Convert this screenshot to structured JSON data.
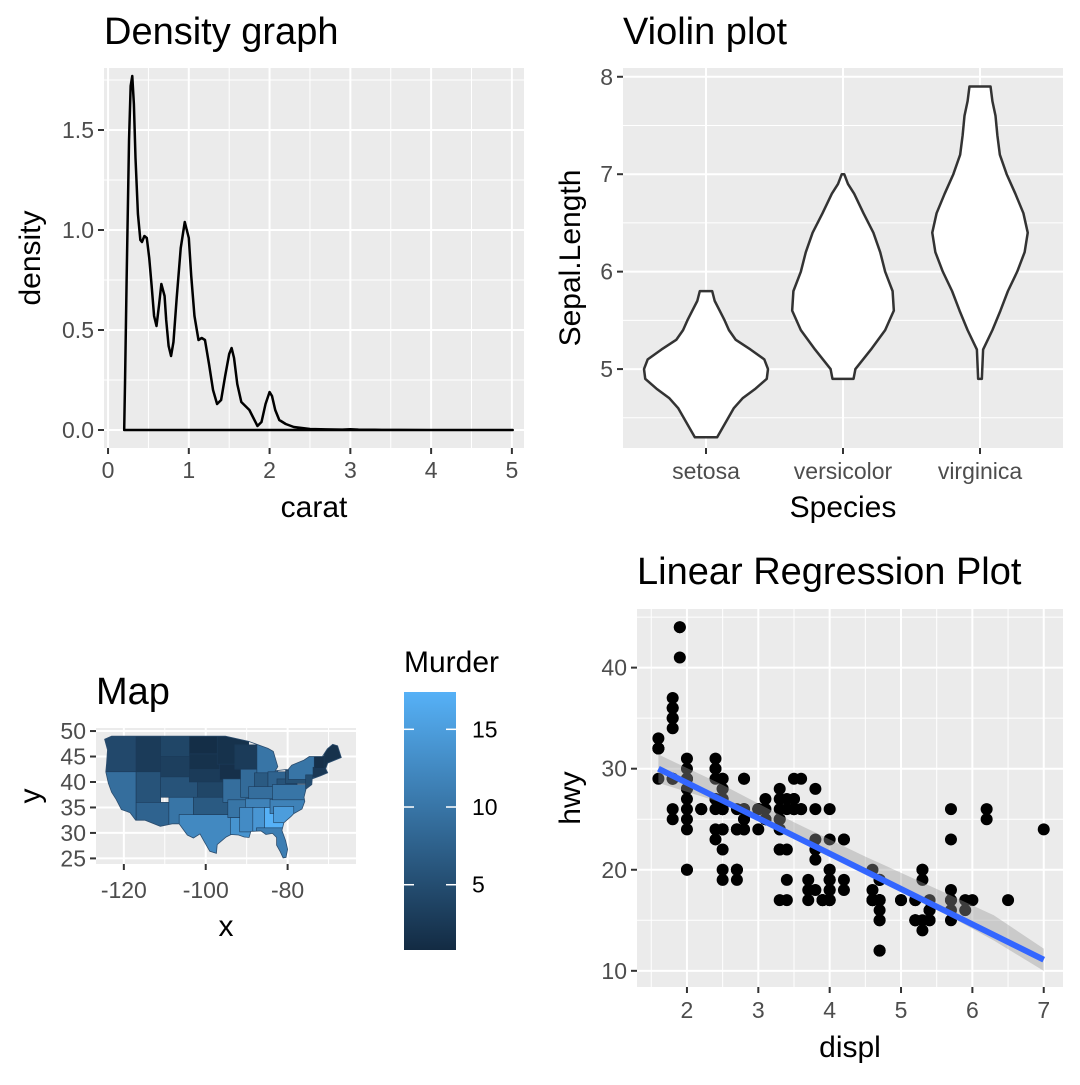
{
  "chart_data": [
    {
      "type": "area",
      "subtype": "density",
      "title": "Density graph",
      "xlabel": "carat",
      "ylabel": "density",
      "xlim": [
        0,
        5
      ],
      "ylim": [
        0,
        1.8
      ],
      "xticks": [
        "0",
        "1",
        "2",
        "3",
        "4",
        "5"
      ],
      "yticks": [
        "0.0",
        "0.5",
        "1.0",
        "1.5"
      ],
      "grid": true,
      "x": [
        0.2,
        0.21,
        0.23,
        0.26,
        0.28,
        0.3,
        0.32,
        0.34,
        0.37,
        0.4,
        0.42,
        0.45,
        0.48,
        0.51,
        0.54,
        0.57,
        0.6,
        0.63,
        0.66,
        0.7,
        0.72,
        0.75,
        0.78,
        0.81,
        0.85,
        0.9,
        0.95,
        1.0,
        1.03,
        1.07,
        1.12,
        1.16,
        1.2,
        1.25,
        1.3,
        1.35,
        1.4,
        1.45,
        1.5,
        1.53,
        1.56,
        1.6,
        1.65,
        1.7,
        1.75,
        1.8,
        1.85,
        1.9,
        1.95,
        2.0,
        2.03,
        2.07,
        2.12,
        2.2,
        2.3,
        2.4,
        2.5,
        2.7,
        2.9,
        3.0,
        3.1,
        3.3,
        3.6,
        4.0,
        4.5,
        5.01
      ],
      "y": [
        0.0,
        0.23,
        0.75,
        1.45,
        1.72,
        1.77,
        1.63,
        1.36,
        1.08,
        0.95,
        0.94,
        0.97,
        0.96,
        0.86,
        0.72,
        0.57,
        0.52,
        0.62,
        0.73,
        0.67,
        0.55,
        0.42,
        0.37,
        0.44,
        0.66,
        0.91,
        1.04,
        0.96,
        0.77,
        0.57,
        0.45,
        0.46,
        0.45,
        0.33,
        0.2,
        0.13,
        0.15,
        0.27,
        0.38,
        0.41,
        0.36,
        0.23,
        0.14,
        0.12,
        0.1,
        0.06,
        0.02,
        0.04,
        0.13,
        0.19,
        0.17,
        0.1,
        0.05,
        0.03,
        0.015,
        0.01,
        0.005,
        0.003,
        0.002,
        0.004,
        0.002,
        0.001,
        0.0005,
        0.0003,
        0.0002,
        0.0001
      ]
    },
    {
      "type": "violin",
      "title": "Violin plot",
      "xlabel": "Species",
      "ylabel": "Sepal.Length",
      "categories": [
        "setosa",
        "versicolor",
        "virginica"
      ],
      "ylim": [
        4.2,
        8.0
      ],
      "yticks": [
        "5",
        "6",
        "7",
        "8"
      ],
      "grid": true,
      "violins": [
        {
          "name": "setosa",
          "y": [
            4.3,
            4.4,
            4.5,
            4.6,
            4.7,
            4.8,
            4.9,
            5.0,
            5.1,
            5.2,
            5.3,
            5.4,
            5.5,
            5.6,
            5.7,
            5.8
          ],
          "halfwidth": [
            0.18,
            0.27,
            0.36,
            0.45,
            0.59,
            0.8,
            0.98,
            1.0,
            0.94,
            0.72,
            0.48,
            0.37,
            0.3,
            0.22,
            0.14,
            0.1
          ]
        },
        {
          "name": "versicolor",
          "y": [
            4.9,
            5.0,
            5.2,
            5.4,
            5.6,
            5.8,
            6.0,
            6.2,
            6.4,
            6.6,
            6.8,
            6.9,
            7.0
          ],
          "halfwidth": [
            0.17,
            0.2,
            0.45,
            0.68,
            0.82,
            0.8,
            0.68,
            0.6,
            0.49,
            0.33,
            0.18,
            0.08,
            0.02
          ]
        },
        {
          "name": "virginica",
          "y": [
            4.9,
            5.2,
            5.4,
            5.6,
            5.8,
            6.0,
            6.2,
            6.4,
            6.6,
            6.8,
            7.0,
            7.2,
            7.4,
            7.6,
            7.75,
            7.9
          ],
          "halfwidth": [
            0.03,
            0.05,
            0.2,
            0.33,
            0.45,
            0.6,
            0.72,
            0.77,
            0.7,
            0.57,
            0.43,
            0.32,
            0.28,
            0.25,
            0.2,
            0.17
          ]
        }
      ]
    },
    {
      "type": "map",
      "subtype": "choropleth",
      "title": "Map",
      "xlabel": "x",
      "ylabel": "y",
      "xlim": [
        -126,
        -64
      ],
      "ylim": [
        24,
        51
      ],
      "xticks": [
        -120,
        -100,
        -80
      ],
      "yticks": [
        25,
        30,
        35,
        40,
        45,
        50
      ],
      "fill_variable": "Murder",
      "legend": {
        "title": "Murder",
        "range": [
          0.8,
          17.4
        ],
        "ticks": [
          5,
          10,
          15
        ],
        "low_color": "#132B43",
        "high_color": "#56B1F7",
        "placement": "right"
      },
      "outline": [
        [
          -124.7,
          48.4
        ],
        [
          -123.0,
          49.0
        ],
        [
          -95.2,
          49.0
        ],
        [
          -89.6,
          48.0
        ],
        [
          -84.8,
          46.6
        ],
        [
          -83.5,
          46.0
        ],
        [
          -82.4,
          43.0
        ],
        [
          -83.0,
          42.2
        ],
        [
          -79.8,
          42.5
        ],
        [
          -79.0,
          43.3
        ],
        [
          -76.0,
          44.3
        ],
        [
          -74.7,
          45.0
        ],
        [
          -71.5,
          45.0
        ],
        [
          -70.3,
          46.5
        ],
        [
          -69.0,
          47.4
        ],
        [
          -67.8,
          47.1
        ],
        [
          -66.9,
          44.8
        ],
        [
          -70.2,
          43.7
        ],
        [
          -70.7,
          42.6
        ],
        [
          -70.2,
          41.8
        ],
        [
          -72.0,
          41.2
        ],
        [
          -74.0,
          40.6
        ],
        [
          -74.1,
          39.5
        ],
        [
          -75.5,
          38.6
        ],
        [
          -76.0,
          37.0
        ],
        [
          -75.8,
          36.2
        ],
        [
          -76.5,
          34.7
        ],
        [
          -78.5,
          33.8
        ],
        [
          -79.2,
          33.2
        ],
        [
          -80.9,
          32.0
        ],
        [
          -81.4,
          30.5
        ],
        [
          -80.5,
          28.5
        ],
        [
          -80.0,
          26.8
        ],
        [
          -80.4,
          25.2
        ],
        [
          -81.1,
          25.1
        ],
        [
          -81.8,
          26.3
        ],
        [
          -82.7,
          27.6
        ],
        [
          -82.7,
          29.1
        ],
        [
          -83.7,
          29.9
        ],
        [
          -85.3,
          29.7
        ],
        [
          -86.5,
          30.4
        ],
        [
          -89.0,
          30.3
        ],
        [
          -89.4,
          29.1
        ],
        [
          -90.6,
          29.2
        ],
        [
          -92.0,
          29.6
        ],
        [
          -93.8,
          29.7
        ],
        [
          -95.0,
          29.2
        ],
        [
          -97.2,
          27.7
        ],
        [
          -97.4,
          26.0
        ],
        [
          -99.0,
          26.4
        ],
        [
          -100.3,
          28.2
        ],
        [
          -101.4,
          29.8
        ],
        [
          -103.0,
          29.0
        ],
        [
          -104.5,
          29.6
        ],
        [
          -106.5,
          31.8
        ],
        [
          -108.2,
          31.8
        ],
        [
          -111.1,
          31.3
        ],
        [
          -114.8,
          32.5
        ],
        [
          -117.1,
          32.5
        ],
        [
          -118.5,
          34.0
        ],
        [
          -120.6,
          34.6
        ],
        [
          -121.9,
          36.6
        ],
        [
          -123.0,
          38.0
        ],
        [
          -123.8,
          39.8
        ],
        [
          -124.4,
          42.0
        ],
        [
          -124.2,
          43.7
        ],
        [
          -124.0,
          46.3
        ],
        [
          -124.7,
          48.4
        ]
      ]
    },
    {
      "type": "scatter",
      "title": "Linear Regression Plot",
      "xlabel": "displ",
      "ylabel": "hwy",
      "xlim": [
        1.3,
        7.3
      ],
      "ylim": [
        9,
        46
      ],
      "xticks": [
        2,
        3,
        4,
        5,
        6,
        7
      ],
      "yticks": [
        10,
        20,
        30,
        40
      ],
      "grid": true,
      "points": [
        [
          1.8,
          29
        ],
        [
          1.8,
          29
        ],
        [
          2.0,
          31
        ],
        [
          2.0,
          30
        ],
        [
          2.8,
          26
        ],
        [
          2.8,
          26
        ],
        [
          3.1,
          27
        ],
        [
          1.8,
          26
        ],
        [
          1.8,
          25
        ],
        [
          2.0,
          28
        ],
        [
          2.0,
          27
        ],
        [
          2.8,
          25
        ],
        [
          2.8,
          25
        ],
        [
          3.1,
          25
        ],
        [
          3.1,
          25
        ],
        [
          2.8,
          24
        ],
        [
          3.1,
          25
        ],
        [
          4.2,
          23
        ],
        [
          5.3,
          20
        ],
        [
          5.3,
          15
        ],
        [
          5.3,
          20
        ],
        [
          5.7,
          17
        ],
        [
          6.0,
          17
        ],
        [
          5.7,
          26
        ],
        [
          5.7,
          23
        ],
        [
          6.2,
          26
        ],
        [
          6.2,
          25
        ],
        [
          7.0,
          24
        ],
        [
          5.3,
          19
        ],
        [
          5.3,
          14
        ],
        [
          5.7,
          15
        ],
        [
          6.5,
          17
        ],
        [
          2.4,
          27
        ],
        [
          2.4,
          30
        ],
        [
          3.1,
          26
        ],
        [
          3.5,
          29
        ],
        [
          3.6,
          26
        ],
        [
          2.4,
          24
        ],
        [
          3.0,
          24
        ],
        [
          3.3,
          22
        ],
        [
          3.3,
          22
        ],
        [
          3.3,
          24
        ],
        [
          3.3,
          24
        ],
        [
          3.3,
          17
        ],
        [
          3.8,
          22
        ],
        [
          3.8,
          21
        ],
        [
          3.8,
          23
        ],
        [
          4.0,
          23
        ],
        [
          3.7,
          19
        ],
        [
          3.7,
          18
        ],
        [
          3.9,
          17
        ],
        [
          3.9,
          17
        ],
        [
          4.7,
          19
        ],
        [
          4.7,
          19
        ],
        [
          4.7,
          12
        ],
        [
          4.7,
          12
        ],
        [
          5.2,
          17
        ],
        [
          5.2,
          17
        ],
        [
          3.9,
          17
        ],
        [
          4.7,
          17
        ],
        [
          4.7,
          15
        ],
        [
          5.2,
          15
        ],
        [
          5.7,
          16
        ],
        [
          5.9,
          17
        ],
        [
          4.7,
          16
        ],
        [
          4.7,
          17
        ],
        [
          5.2,
          15
        ],
        [
          5.2,
          15
        ],
        [
          5.7,
          17
        ],
        [
          5.9,
          16
        ],
        [
          4.6,
          17
        ],
        [
          5.4,
          15
        ],
        [
          5.4,
          16
        ],
        [
          4.0,
          17
        ],
        [
          4.0,
          18
        ],
        [
          4.6,
          17
        ],
        [
          5.0,
          17
        ],
        [
          4.2,
          19
        ],
        [
          4.2,
          18
        ],
        [
          4.6,
          17
        ],
        [
          4.6,
          17
        ],
        [
          5.4,
          16
        ],
        [
          5.4,
          15
        ],
        [
          3.8,
          18
        ],
        [
          4.0,
          19
        ],
        [
          4.0,
          19
        ],
        [
          4.6,
          18
        ],
        [
          5.0,
          17
        ],
        [
          5.4,
          17
        ],
        [
          2.0,
          20
        ],
        [
          2.0,
          20
        ],
        [
          2.2,
          26
        ],
        [
          2.4,
          23
        ],
        [
          2.5,
          26
        ],
        [
          2.7,
          20
        ],
        [
          2.7,
          20
        ],
        [
          3.4,
          26
        ],
        [
          3.6,
          26
        ],
        [
          2.5,
          29
        ],
        [
          2.7,
          26
        ],
        [
          3.3,
          26
        ],
        [
          3.3,
          25
        ],
        [
          3.3,
          25
        ],
        [
          3.5,
          27
        ],
        [
          3.5,
          27
        ],
        [
          4.0,
          26
        ],
        [
          4.2,
          23
        ],
        [
          2.0,
          24
        ],
        [
          2.0,
          25
        ],
        [
          2.5,
          27
        ],
        [
          2.8,
          24
        ],
        [
          2.8,
          26
        ],
        [
          3.0,
          26
        ],
        [
          3.0,
          26
        ],
        [
          3.3,
          28
        ],
        [
          3.3,
          27
        ],
        [
          3.5,
          26
        ],
        [
          3.5,
          26
        ],
        [
          3.8,
          28
        ],
        [
          3.8,
          26
        ],
        [
          1.6,
          33
        ],
        [
          1.6,
          32
        ],
        [
          1.6,
          32
        ],
        [
          1.6,
          29
        ],
        [
          1.6,
          32
        ],
        [
          1.8,
          34
        ],
        [
          1.8,
          36
        ],
        [
          1.8,
          36
        ],
        [
          2.0,
          29
        ],
        [
          2.4,
          26
        ],
        [
          2.4,
          27
        ],
        [
          2.4,
          30
        ],
        [
          2.4,
          31
        ],
        [
          2.5,
          26
        ],
        [
          2.5,
          26
        ],
        [
          2.5,
          28
        ],
        [
          2.5,
          26
        ],
        [
          2.5,
          29
        ],
        [
          2.5,
          28
        ],
        [
          2.5,
          27
        ],
        [
          2.5,
          24
        ],
        [
          2.5,
          24
        ],
        [
          2.5,
          24
        ],
        [
          2.5,
          22
        ],
        [
          2.5,
          19
        ],
        [
          2.5,
          20
        ],
        [
          1.8,
          35
        ],
        [
          1.8,
          37
        ],
        [
          1.8,
          35
        ],
        [
          1.8,
          29
        ],
        [
          1.9,
          44
        ],
        [
          1.9,
          44
        ],
        [
          1.9,
          41
        ],
        [
          2.0,
          29
        ],
        [
          2.0,
          26
        ],
        [
          2.0,
          28
        ],
        [
          2.0,
          29
        ],
        [
          2.8,
          29
        ],
        [
          2.8,
          29
        ],
        [
          3.6,
          29
        ],
        [
          2.7,
          24
        ],
        [
          2.7,
          24
        ],
        [
          3.4,
          27
        ],
        [
          3.4,
          22
        ],
        [
          4.0,
          20
        ],
        [
          4.0,
          17
        ],
        [
          4.7,
          17
        ],
        [
          4.7,
          19
        ],
        [
          2.7,
          24
        ],
        [
          3.4,
          19
        ],
        [
          4.0,
          18
        ],
        [
          4.7,
          15
        ],
        [
          5.7,
          18
        ],
        [
          2.2,
          26
        ],
        [
          2.2,
          26
        ],
        [
          2.4,
          27
        ],
        [
          2.4,
          29
        ],
        [
          3.0,
          26
        ],
        [
          3.0,
          26
        ],
        [
          3.5,
          26
        ],
        [
          3.7,
          17
        ],
        [
          4.0,
          20
        ],
        [
          4.7,
          17
        ],
        [
          2.7,
          20
        ],
        [
          2.7,
          19
        ],
        [
          3.4,
          17
        ],
        [
          4.0,
          19
        ],
        [
          4.0,
          17
        ],
        [
          4.6,
          20
        ],
        [
          5.4,
          16
        ]
      ],
      "regression": {
        "x": [
          1.6,
          7.0
        ],
        "y": [
          30.0,
          11.1
        ]
      },
      "se_band": {
        "x": [
          1.6,
          2.5,
          3.5,
          4.5,
          5.5,
          6.3,
          7.0
        ],
        "lower": [
          28.6,
          26.6,
          23.3,
          19.8,
          16.1,
          13.0,
          10.0
        ],
        "upper": [
          31.4,
          28.4,
          24.7,
          21.3,
          18.1,
          15.5,
          12.2
        ]
      }
    }
  ]
}
